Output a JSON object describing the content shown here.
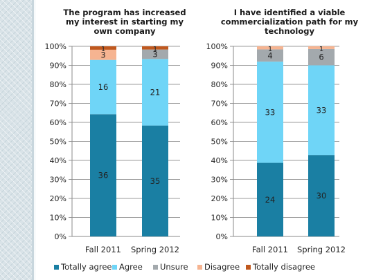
{
  "chart_data": [
    {
      "type": "bar",
      "stacked": true,
      "normalized": true,
      "title": "The program has increased my interest in starting my own company",
      "title_lines": [
        "The program has increased",
        "my interest in starting my",
        "own company"
      ],
      "categories": [
        "Fall 2011",
        "Spring 2012"
      ],
      "ylim": [
        0,
        100
      ],
      "y_tick_labels": [
        "0%",
        "10%",
        "20%",
        "30%",
        "40%",
        "50%",
        "60%",
        "70%",
        "80%",
        "90%",
        "100%"
      ],
      "grid": true,
      "series": [
        {
          "name": "Totally agree",
          "color": "#1a7fa3",
          "values": [
            36,
            35
          ]
        },
        {
          "name": "Agree",
          "color": "#6fd5f7",
          "values": [
            16,
            21
          ]
        },
        {
          "name": "Unsure",
          "color": "#a3a9ad",
          "values": [
            0,
            3
          ]
        },
        {
          "name": "Disagree",
          "color": "#f6b491",
          "values": [
            3,
            0
          ]
        },
        {
          "name": "Totally disagree",
          "color": "#c0581e",
          "values": [
            1,
            1
          ]
        }
      ]
    },
    {
      "type": "bar",
      "stacked": true,
      "normalized": true,
      "title": "I have identified a viable commercialization path for my technology",
      "title_lines": [
        "I have identified a viable",
        "commercialization path for my",
        "technology"
      ],
      "categories": [
        "Fall 2011",
        "Spring 2012"
      ],
      "ylim": [
        0,
        100
      ],
      "y_tick_labels": [
        "0%",
        "10%",
        "20%",
        "30%",
        "40%",
        "50%",
        "60%",
        "70%",
        "80%",
        "90%",
        "100%"
      ],
      "grid": true,
      "series": [
        {
          "name": "Totally agree",
          "color": "#1a7fa3",
          "values": [
            24,
            30
          ]
        },
        {
          "name": "Agree",
          "color": "#6fd5f7",
          "values": [
            33,
            33
          ]
        },
        {
          "name": "Unsure",
          "color": "#a3a9ad",
          "values": [
            4,
            6
          ]
        },
        {
          "name": "Disagree",
          "color": "#f6b491",
          "values": [
            1,
            1
          ]
        },
        {
          "name": "Totally disagree",
          "color": "#c0581e",
          "values": [
            0,
            0
          ]
        }
      ]
    }
  ],
  "legend": {
    "placement": "bottom",
    "items": [
      {
        "label": "Totally agree",
        "color": "#1a7fa3"
      },
      {
        "label": "Agree",
        "color": "#6fd5f7"
      },
      {
        "label": "Unsure",
        "color": "#a3a9ad"
      },
      {
        "label": "Disagree",
        "color": "#f6b491"
      },
      {
        "label": "Totally disagree",
        "color": "#c0581e"
      }
    ]
  }
}
